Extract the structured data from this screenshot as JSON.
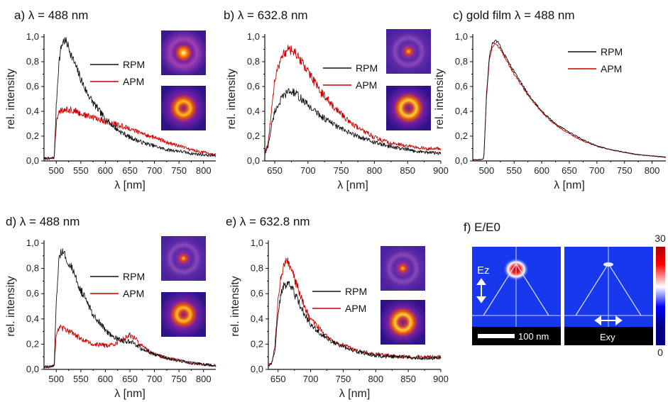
{
  "chart_data": [
    {
      "type": "line",
      "title": "a) λ = 488 nm",
      "xlabel": "λ [nm]",
      "ylabel": "rel. intensity",
      "xlim": [
        475,
        825
      ],
      "ylim": [
        0,
        1.0
      ],
      "xticks": [
        "500",
        "550",
        "600",
        "650",
        "700",
        "750",
        "800"
      ],
      "yticks": [
        "0,0",
        "0,2",
        "0,4",
        "0,6",
        "0,8",
        "1,0"
      ],
      "legend": [
        "RPM",
        "APM"
      ],
      "series": [
        {
          "name": "RPM",
          "color": "#111111",
          "x": [
            475,
            490,
            496,
            500,
            505,
            510,
            515,
            520,
            525,
            530,
            540,
            550,
            560,
            575,
            590,
            600,
            625,
            650,
            675,
            700,
            725,
            750,
            775,
            800,
            825
          ],
          "y": [
            0.02,
            0.02,
            0.03,
            0.45,
            0.78,
            0.92,
            0.97,
            0.96,
            0.92,
            0.86,
            0.76,
            0.66,
            0.57,
            0.47,
            0.39,
            0.34,
            0.25,
            0.19,
            0.15,
            0.12,
            0.09,
            0.08,
            0.06,
            0.05,
            0.04
          ]
        },
        {
          "name": "APM",
          "color": "#cc0000",
          "x": [
            475,
            490,
            496,
            500,
            505,
            510,
            520,
            530,
            540,
            550,
            575,
            600,
            625,
            650,
            675,
            700,
            725,
            750,
            775,
            800,
            825
          ],
          "y": [
            0.02,
            0.02,
            0.03,
            0.3,
            0.38,
            0.41,
            0.42,
            0.41,
            0.4,
            0.38,
            0.35,
            0.32,
            0.29,
            0.26,
            0.22,
            0.19,
            0.15,
            0.12,
            0.09,
            0.07,
            0.05
          ]
        }
      ],
      "insets": [
        "RPM intensity map",
        "APM intensity map"
      ]
    },
    {
      "type": "line",
      "title": "b) λ = 632.8 nm",
      "xlabel": "λ [nm]",
      "ylabel": "rel. intensity",
      "xlim": [
        635,
        900
      ],
      "ylim": [
        0,
        1.0
      ],
      "xticks": [
        "650",
        "700",
        "750",
        "800",
        "850",
        "900"
      ],
      "yticks": [
        "0,0",
        "0,2",
        "0,4",
        "0,6",
        "0,8",
        "1,0"
      ],
      "legend": [
        "RPM",
        "APM"
      ],
      "series": [
        {
          "name": "RPM",
          "color": "#111111",
          "x": [
            635,
            640,
            645,
            650,
            660,
            670,
            680,
            690,
            700,
            720,
            740,
            760,
            780,
            800,
            820,
            840,
            860,
            880,
            900
          ],
          "y": [
            0.05,
            0.12,
            0.28,
            0.4,
            0.5,
            0.56,
            0.55,
            0.5,
            0.45,
            0.36,
            0.29,
            0.23,
            0.19,
            0.15,
            0.12,
            0.1,
            0.08,
            0.07,
            0.06
          ]
        },
        {
          "name": "APM",
          "color": "#cc0000",
          "x": [
            635,
            640,
            645,
            650,
            660,
            670,
            680,
            690,
            700,
            720,
            740,
            760,
            780,
            800,
            820,
            840,
            860,
            880,
            900
          ],
          "y": [
            0.06,
            0.15,
            0.4,
            0.65,
            0.84,
            0.9,
            0.88,
            0.8,
            0.72,
            0.55,
            0.43,
            0.33,
            0.25,
            0.19,
            0.15,
            0.13,
            0.11,
            0.1,
            0.1
          ]
        }
      ],
      "insets": [
        "RPM intensity map",
        "APM intensity map"
      ]
    },
    {
      "type": "line",
      "title": "c) gold film λ = 488 nm",
      "xlabel": "λ [nm]",
      "ylabel": "rel. intensity",
      "xlim": [
        475,
        825
      ],
      "ylim": [
        0,
        1.0
      ],
      "xticks": [
        "500",
        "550",
        "600",
        "650",
        "700",
        "750",
        "800"
      ],
      "yticks": [
        "0,0",
        "0,2",
        "0,4",
        "0,6",
        "0,8",
        "1,0"
      ],
      "legend": [
        "RPM",
        "APM"
      ],
      "series": [
        {
          "name": "RPM",
          "color": "#111111",
          "x": [
            475,
            490,
            495,
            500,
            505,
            510,
            515,
            520,
            525,
            530,
            540,
            550,
            575,
            600,
            625,
            650,
            675,
            700,
            725,
            750,
            775,
            800,
            825
          ],
          "y": [
            0.01,
            0.01,
            0.02,
            0.55,
            0.84,
            0.94,
            0.97,
            0.96,
            0.93,
            0.88,
            0.8,
            0.72,
            0.54,
            0.4,
            0.3,
            0.23,
            0.17,
            0.12,
            0.09,
            0.07,
            0.05,
            0.04,
            0.03
          ]
        },
        {
          "name": "APM",
          "color": "#cc0000",
          "x": [
            475,
            490,
            495,
            500,
            505,
            510,
            515,
            520,
            525,
            530,
            540,
            550,
            575,
            600,
            625,
            650,
            675,
            700,
            725,
            750,
            775,
            800,
            825
          ],
          "y": [
            0.01,
            0.01,
            0.02,
            0.52,
            0.81,
            0.91,
            0.94,
            0.93,
            0.9,
            0.86,
            0.78,
            0.7,
            0.53,
            0.39,
            0.29,
            0.22,
            0.16,
            0.12,
            0.09,
            0.07,
            0.05,
            0.04,
            0.03
          ]
        }
      ],
      "insets": []
    },
    {
      "type": "line",
      "title": "d) λ = 488 nm",
      "xlabel": "λ [nm]",
      "ylabel": "rel. intensity",
      "xlim": [
        475,
        825
      ],
      "ylim": [
        0,
        1.0
      ],
      "xticks": [
        "500",
        "550",
        "600",
        "650",
        "700",
        "750",
        "800"
      ],
      "yticks": [
        "0,0",
        "0,2",
        "0,4",
        "0,6",
        "0,8",
        "1,0"
      ],
      "legend": [
        "RPM",
        "APM"
      ],
      "series": [
        {
          "name": "RPM",
          "color": "#111111",
          "x": [
            475,
            490,
            496,
            500,
            505,
            510,
            515,
            520,
            530,
            540,
            550,
            560,
            575,
            590,
            600,
            625,
            640,
            650,
            660,
            675,
            700,
            725,
            750,
            775,
            800,
            825
          ],
          "y": [
            0.02,
            0.02,
            0.03,
            0.55,
            0.85,
            0.93,
            0.92,
            0.89,
            0.81,
            0.72,
            0.63,
            0.55,
            0.44,
            0.36,
            0.31,
            0.24,
            0.22,
            0.22,
            0.2,
            0.16,
            0.12,
            0.09,
            0.07,
            0.05,
            0.04,
            0.03
          ]
        },
        {
          "name": "APM",
          "color": "#cc0000",
          "x": [
            475,
            490,
            496,
            500,
            505,
            510,
            520,
            530,
            540,
            550,
            575,
            600,
            620,
            640,
            650,
            660,
            670,
            690,
            700,
            725,
            750,
            775,
            800,
            825
          ],
          "y": [
            0.02,
            0.02,
            0.03,
            0.28,
            0.33,
            0.33,
            0.31,
            0.29,
            0.27,
            0.24,
            0.2,
            0.19,
            0.2,
            0.25,
            0.27,
            0.25,
            0.2,
            0.14,
            0.12,
            0.09,
            0.07,
            0.05,
            0.04,
            0.03
          ]
        }
      ],
      "insets": [
        "RPM intensity map",
        "APM intensity map"
      ]
    },
    {
      "type": "line",
      "title": "e) λ = 632.8 nm",
      "xlabel": "λ [nm]",
      "ylabel": "rel. intensity",
      "xlim": [
        635,
        900
      ],
      "ylim": [
        0,
        1.0
      ],
      "xticks": [
        "650",
        "700",
        "750",
        "800",
        "850",
        "900"
      ],
      "yticks": [
        "0,0",
        "0,2",
        "0,4",
        "0,6",
        "0,8",
        "1,0"
      ],
      "legend": [
        "RPM",
        "APM"
      ],
      "series": [
        {
          "name": "RPM",
          "color": "#111111",
          "x": [
            635,
            640,
            645,
            650,
            655,
            660,
            665,
            670,
            680,
            690,
            700,
            720,
            740,
            760,
            780,
            800,
            820,
            840,
            860,
            880,
            900
          ],
          "y": [
            0.03,
            0.05,
            0.15,
            0.45,
            0.6,
            0.67,
            0.68,
            0.65,
            0.55,
            0.44,
            0.36,
            0.26,
            0.2,
            0.16,
            0.13,
            0.11,
            0.1,
            0.1,
            0.09,
            0.09,
            0.09
          ]
        },
        {
          "name": "APM",
          "color": "#cc0000",
          "x": [
            635,
            640,
            645,
            650,
            655,
            660,
            665,
            670,
            680,
            690,
            700,
            720,
            740,
            760,
            780,
            800,
            820,
            840,
            860,
            880,
            900
          ],
          "y": [
            0.03,
            0.05,
            0.18,
            0.55,
            0.75,
            0.85,
            0.86,
            0.8,
            0.65,
            0.5,
            0.4,
            0.28,
            0.21,
            0.17,
            0.14,
            0.12,
            0.11,
            0.1,
            0.1,
            0.1,
            0.1
          ]
        }
      ],
      "insets": [
        "RPM intensity map",
        "APM intensity map"
      ]
    },
    {
      "type": "heatmap",
      "title": "f) E/E0",
      "colorbar": {
        "min": "0",
        "max": "30",
        "colors": [
          "#000080",
          "#0000ff",
          "#ffffff",
          "#ff0000",
          "#b00000"
        ]
      },
      "panels": [
        {
          "label": "Ez",
          "scalebar": "100 nm"
        },
        {
          "label": "Exy"
        }
      ]
    }
  ]
}
